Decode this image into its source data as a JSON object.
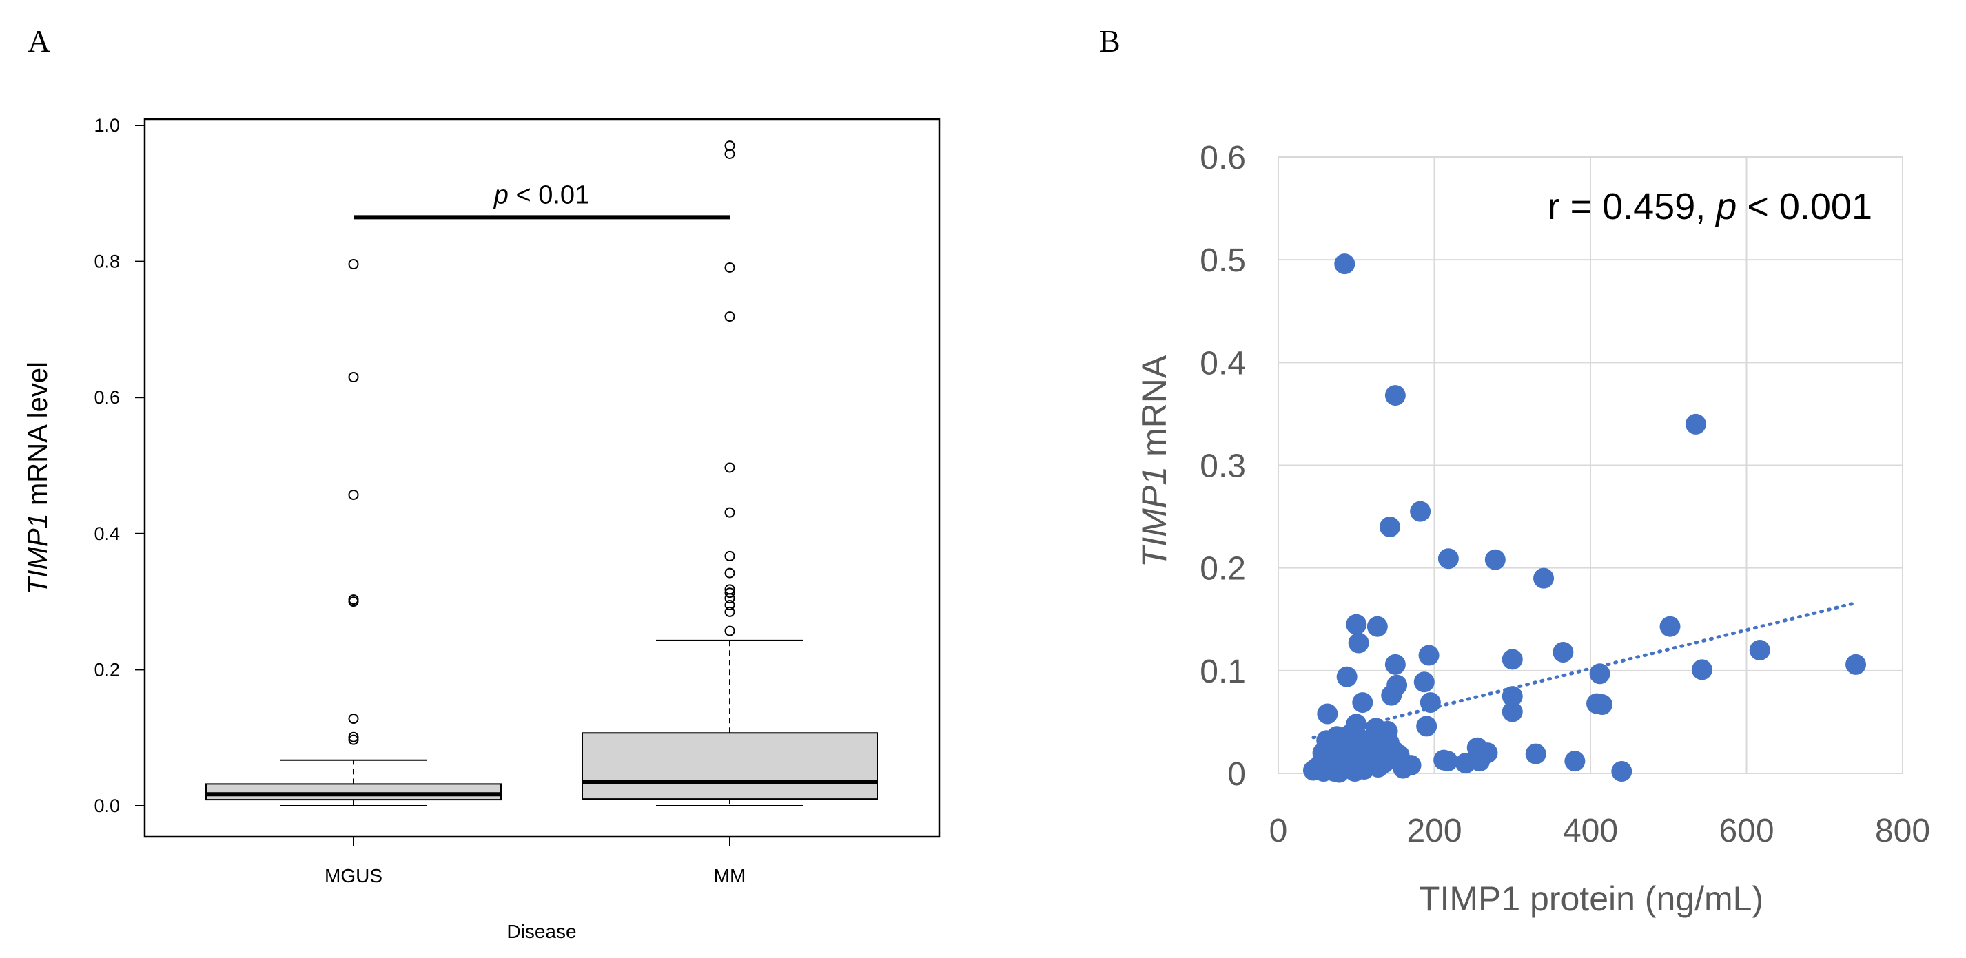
{
  "panels": {
    "A": {
      "label": "A"
    },
    "B": {
      "label": "B"
    }
  },
  "chart_data": [
    {
      "type": "boxplot",
      "panel": "A",
      "xlabel": "Disease",
      "ylabel_italic": "TIMP1",
      "ylabel_rest": " mRNA level",
      "ylim": [
        0.0,
        1.0
      ],
      "yticks": [
        "0.0",
        "0.2",
        "0.4",
        "0.6",
        "0.8",
        "1.0"
      ],
      "categories": [
        "MGUS",
        "MM"
      ],
      "boxes": [
        {
          "name": "MGUS",
          "min": 0.0,
          "q1": 0.009,
          "median": 0.017,
          "q3": 0.032,
          "whisker_high": 0.067,
          "outliers": [
            0.097,
            0.101,
            0.128,
            0.3,
            0.303,
            0.457,
            0.63,
            0.796
          ]
        },
        {
          "name": "MM",
          "min": 0.0,
          "q1": 0.01,
          "median": 0.035,
          "q3": 0.107,
          "whisker_high": 0.243,
          "outliers": [
            0.257,
            0.285,
            0.295,
            0.305,
            0.313,
            0.318,
            0.342,
            0.367,
            0.431,
            0.497,
            0.719,
            0.791,
            0.958,
            0.97
          ]
        }
      ],
      "significance": {
        "p_symbol": "p",
        "p_rest": " < 0.01",
        "bar_y": 0.865
      },
      "colors": {
        "box_fill": "#d3d3d3",
        "line": "#000000"
      }
    },
    {
      "type": "scatter",
      "panel": "B",
      "xlabel": "TIMP1 protein (ng/mL)",
      "ylabel_italic": "TIMP1",
      "ylabel_rest": " mRNA",
      "xlim": [
        0,
        800
      ],
      "ylim": [
        0,
        0.6
      ],
      "xticks": [
        "0",
        "200",
        "400",
        "600",
        "800"
      ],
      "yticks": [
        "0",
        "0.1",
        "0.2",
        "0.3",
        "0.4",
        "0.5",
        "0.6"
      ],
      "annotation": {
        "prefix": "r = 0.459, ",
        "p_symbol": "p",
        "suffix": " < 0.001"
      },
      "trendline": {
        "x": [
          45,
          740
        ],
        "y": [
          0.035,
          0.166
        ],
        "style": "dotted"
      },
      "colors": {
        "point": "#4472c4",
        "grid": "#d9d9d9",
        "axis_text": "#595959"
      },
      "points": [
        [
          85,
          0.496
        ],
        [
          150,
          0.368
        ],
        [
          535,
          0.34
        ],
        [
          182,
          0.255
        ],
        [
          143,
          0.24
        ],
        [
          218,
          0.209
        ],
        [
          278,
          0.208
        ],
        [
          340,
          0.19
        ],
        [
          100,
          0.145
        ],
        [
          127,
          0.143
        ],
        [
          103,
          0.127
        ],
        [
          502,
          0.143
        ],
        [
          617,
          0.12
        ],
        [
          365,
          0.118
        ],
        [
          300,
          0.111
        ],
        [
          193,
          0.115
        ],
        [
          88,
          0.094
        ],
        [
          150,
          0.106
        ],
        [
          740,
          0.106
        ],
        [
          543,
          0.101
        ],
        [
          412,
          0.097
        ],
        [
          152,
          0.086
        ],
        [
          145,
          0.076
        ],
        [
          187,
          0.089
        ],
        [
          300,
          0.075
        ],
        [
          108,
          0.069
        ],
        [
          195,
          0.069
        ],
        [
          408,
          0.068
        ],
        [
          415,
          0.067
        ],
        [
          300,
          0.06
        ],
        [
          63,
          0.058
        ],
        [
          100,
          0.048
        ],
        [
          125,
          0.044
        ],
        [
          190,
          0.046
        ],
        [
          140,
          0.041
        ],
        [
          75,
          0.036
        ],
        [
          90,
          0.032
        ],
        [
          130,
          0.03
        ],
        [
          115,
          0.026
        ],
        [
          80,
          0.022
        ],
        [
          70,
          0.018
        ],
        [
          60,
          0.015
        ],
        [
          55,
          0.01
        ],
        [
          50,
          0.006
        ],
        [
          45,
          0.003
        ],
        [
          65,
          0.004
        ],
        [
          72,
          0.002
        ],
        [
          85,
          0.008
        ],
        [
          95,
          0.012
        ],
        [
          105,
          0.016
        ],
        [
          112,
          0.02
        ],
        [
          120,
          0.014
        ],
        [
          135,
          0.01
        ],
        [
          148,
          0.022
        ],
        [
          155,
          0.018
        ],
        [
          160,
          0.005
        ],
        [
          170,
          0.008
        ],
        [
          110,
          0.004
        ],
        [
          98,
          0.002
        ],
        [
          78,
          0.001
        ],
        [
          58,
          0.002
        ],
        [
          68,
          0.025
        ],
        [
          82,
          0.028
        ],
        [
          92,
          0.038
        ],
        [
          102,
          0.035
        ],
        [
          118,
          0.033
        ],
        [
          138,
          0.012
        ],
        [
          128,
          0.006
        ],
        [
          212,
          0.013
        ],
        [
          217,
          0.012
        ],
        [
          240,
          0.01
        ],
        [
          255,
          0.025
        ],
        [
          258,
          0.012
        ],
        [
          268,
          0.02
        ],
        [
          330,
          0.019
        ],
        [
          380,
          0.012
        ],
        [
          440,
          0.002
        ],
        [
          62,
          0.032
        ],
        [
          88,
          0.015
        ],
        [
          74,
          0.012
        ],
        [
          108,
          0.008
        ],
        [
          122,
          0.024
        ],
        [
          142,
          0.03
        ],
        [
          57,
          0.02
        ],
        [
          66,
          0.009
        ]
      ]
    }
  ]
}
